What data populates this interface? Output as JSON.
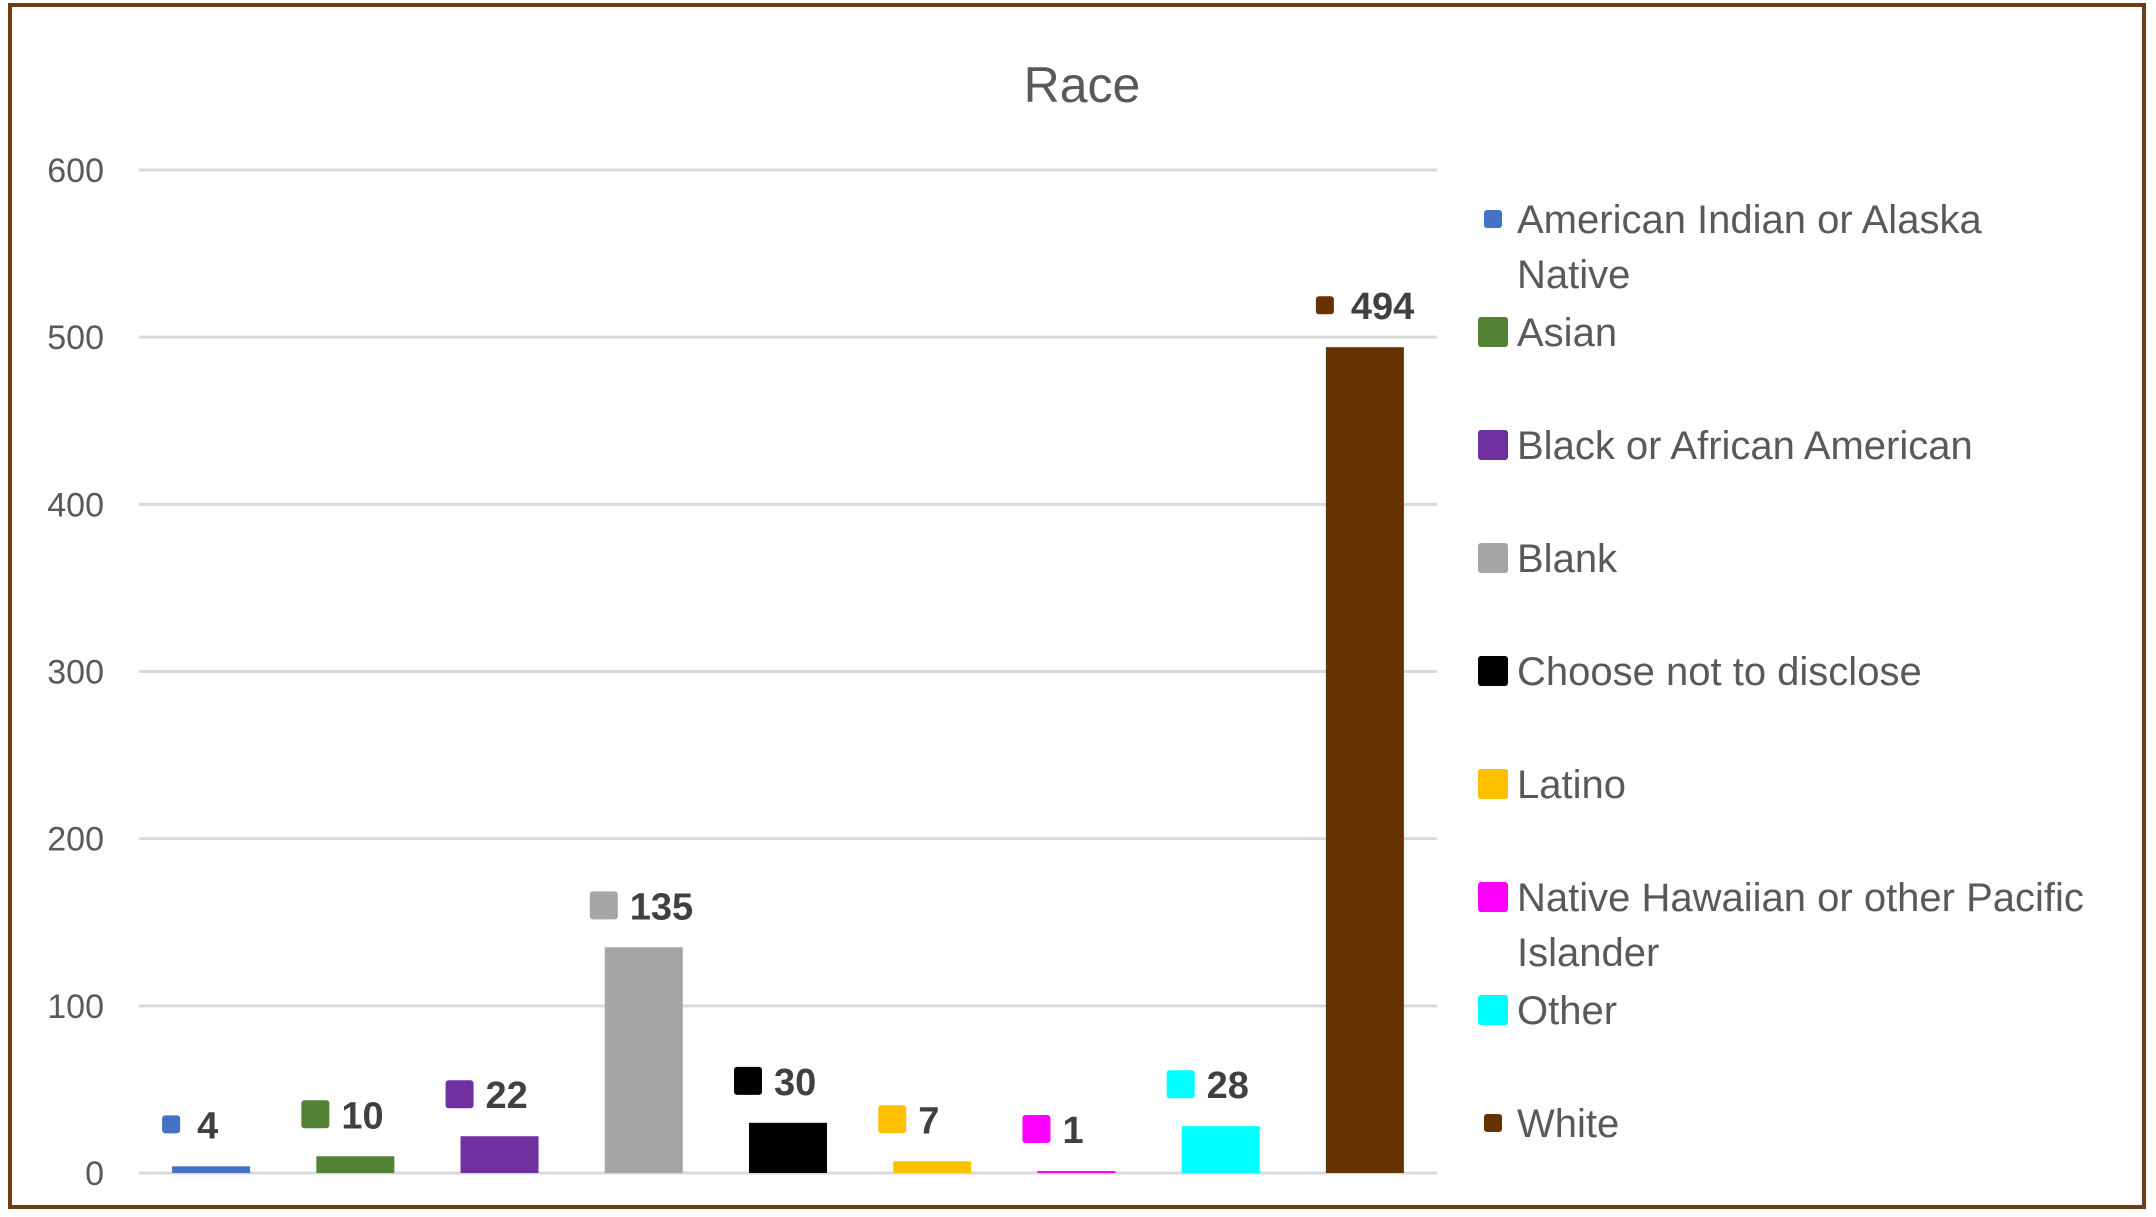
{
  "chart_data": {
    "type": "bar",
    "title": "Race",
    "categories": [
      "American Indian or Alaska Native",
      "Asian",
      "Black or African American",
      "Blank",
      "Choose not to disclose",
      "Latino",
      "Native Hawaiian or other Pacific Islander",
      "Other",
      "White"
    ],
    "values": [
      4,
      10,
      22,
      135,
      30,
      7,
      1,
      28,
      494
    ],
    "colors": [
      "#4472c4",
      "#548235",
      "#7030a0",
      "#a5a5a5",
      "#000000",
      "#ffc000",
      "#ff00ff",
      "#00ffff",
      "#663300"
    ],
    "legend_lines": [
      [
        "American Indian or Alaska",
        "Native"
      ],
      [
        "Asian"
      ],
      [
        "Black or African American"
      ],
      [
        "Blank"
      ],
      [
        "Choose not to disclose"
      ],
      [
        "Latino"
      ],
      [
        "Native Hawaiian or other Pacific",
        "Islander"
      ],
      [
        "Other"
      ],
      [
        "White"
      ]
    ],
    "ylim": [
      0,
      600
    ],
    "yticks": [
      0,
      100,
      200,
      300,
      400,
      500,
      600
    ],
    "grid": true,
    "legend_position": "right",
    "xlabel": "",
    "ylabel": ""
  }
}
